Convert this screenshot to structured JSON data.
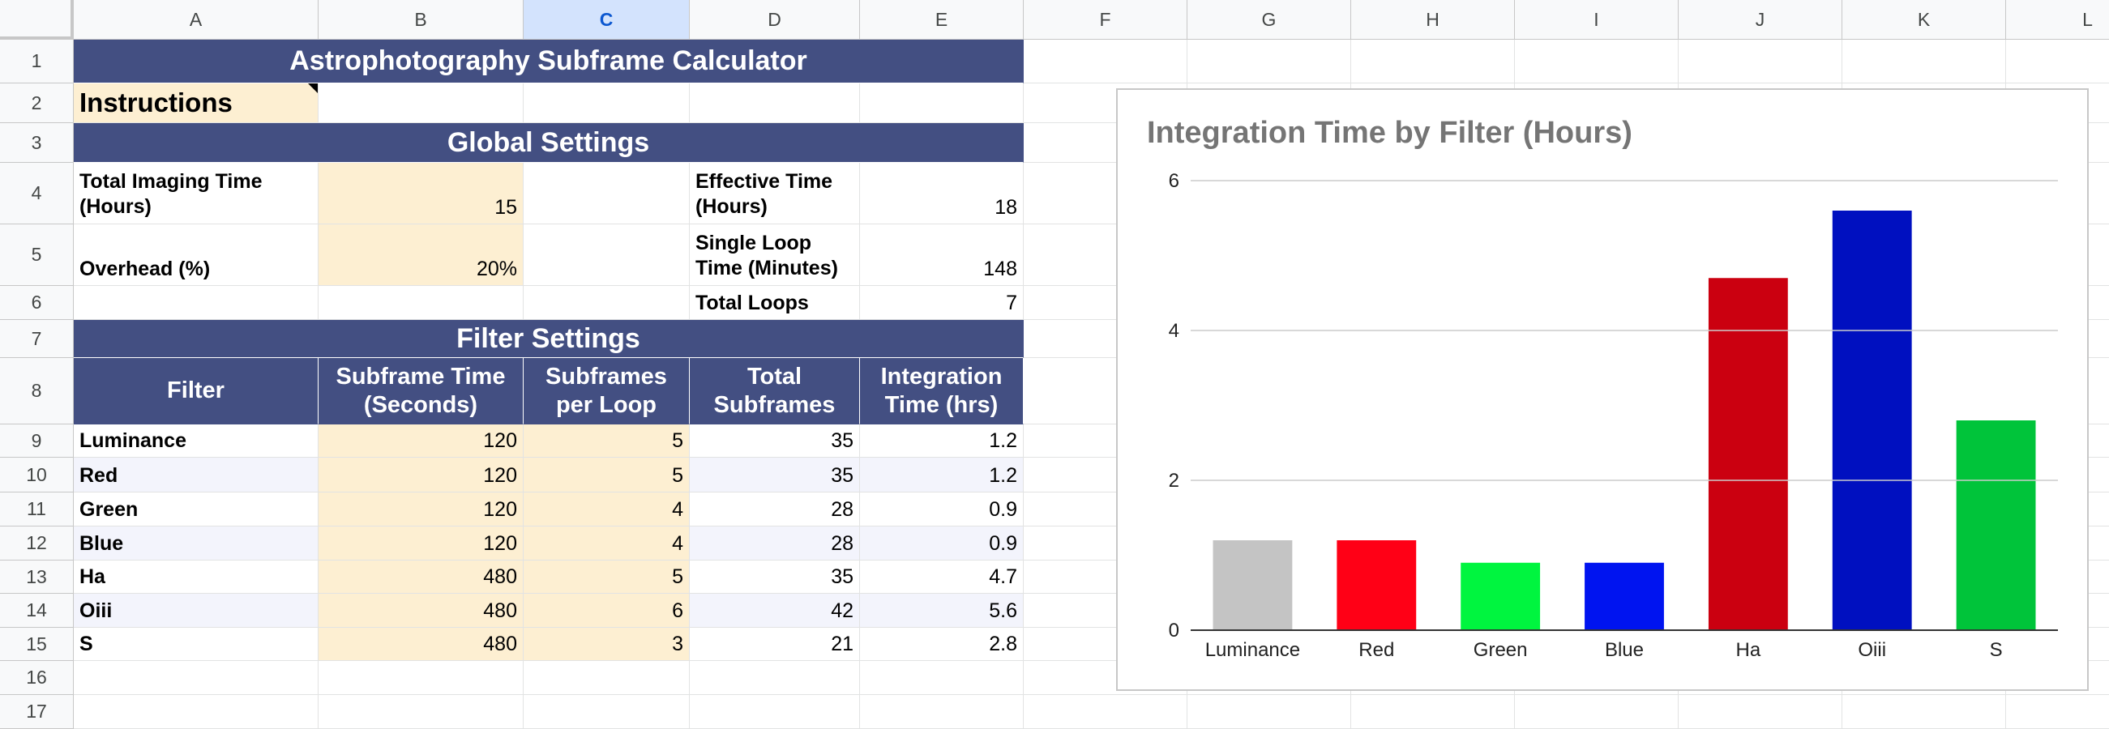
{
  "columns": [
    "A",
    "B",
    "C",
    "D",
    "E",
    "F",
    "G",
    "H",
    "I",
    "J",
    "K",
    "L"
  ],
  "selected_column": "C",
  "rows": [
    "1",
    "2",
    "3",
    "4",
    "5",
    "6",
    "7",
    "8",
    "9",
    "10",
    "11",
    "12",
    "13",
    "14",
    "15",
    "16",
    "17"
  ],
  "title": "Astrophotography Subframe Calculator",
  "instructions": "Instructions",
  "global_settings": {
    "header": "Global Settings",
    "total_imaging_time_label": "Total Imaging Time (Hours)",
    "total_imaging_time_value": "15",
    "overhead_label": "Overhead (%)",
    "overhead_value": "20%",
    "effective_time_label": "Effective Time (Hours)",
    "effective_time_value": "18",
    "single_loop_label": "Single Loop Time (Minutes)",
    "single_loop_value": "148",
    "total_loops_label": "Total Loops",
    "total_loops_value": "7"
  },
  "filter_settings": {
    "header": "Filter Settings",
    "columns": [
      "Filter",
      "Subframe Time (Seconds)",
      "Subframes per Loop",
      "Total Subframes",
      "Integration Time (hrs)"
    ],
    "rows": [
      {
        "filter": "Luminance",
        "subframe_time": "120",
        "per_loop": "5",
        "total": "35",
        "integration": "1.2"
      },
      {
        "filter": "Red",
        "subframe_time": "120",
        "per_loop": "5",
        "total": "35",
        "integration": "1.2"
      },
      {
        "filter": "Green",
        "subframe_time": "120",
        "per_loop": "4",
        "total": "28",
        "integration": "0.9"
      },
      {
        "filter": "Blue",
        "subframe_time": "120",
        "per_loop": "4",
        "total": "28",
        "integration": "0.9"
      },
      {
        "filter": "Ha",
        "subframe_time": "480",
        "per_loop": "5",
        "total": "35",
        "integration": "4.7"
      },
      {
        "filter": "Oiii",
        "subframe_time": "480",
        "per_loop": "6",
        "total": "42",
        "integration": "5.6"
      },
      {
        "filter": "S",
        "subframe_time": "480",
        "per_loop": "3",
        "total": "21",
        "integration": "2.8"
      }
    ]
  },
  "chart_data": {
    "type": "bar",
    "title": "Integration Time by Filter (Hours)",
    "categories": [
      "Luminance",
      "Red",
      "Green",
      "Blue",
      "Ha",
      "Oiii",
      "S"
    ],
    "values": [
      1.2,
      1.2,
      0.9,
      0.9,
      4.7,
      5.6,
      2.8
    ],
    "colors": [
      "#c4c4c4",
      "#ff0016",
      "#00f53f",
      "#0014f0",
      "#cb0010",
      "#0010c0",
      "#00c43a"
    ],
    "ylim": [
      0,
      6
    ],
    "yticks": [
      "0",
      "2",
      "4",
      "6"
    ],
    "xlabel": "",
    "ylabel": "",
    "grid": true,
    "legend": "none"
  }
}
